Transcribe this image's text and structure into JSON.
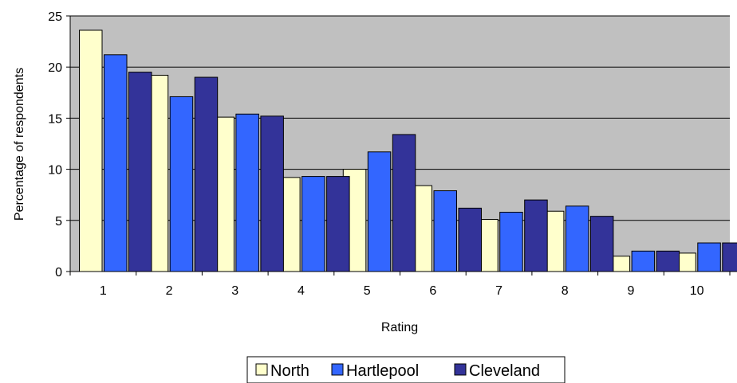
{
  "chart_data": {
    "type": "bar",
    "title": "",
    "xlabel": "Rating",
    "ylabel": "Percentage of respondents",
    "categories": [
      "1",
      "2",
      "3",
      "4",
      "5",
      "6",
      "7",
      "8",
      "9",
      "10"
    ],
    "ylim": [
      0,
      25
    ],
    "yticks": [
      "0",
      "5",
      "10",
      "15",
      "20",
      "25"
    ],
    "grid": true,
    "legend_position": "bottom",
    "series": [
      {
        "name": "North",
        "color": "#ffffcc",
        "values": [
          23.6,
          19.2,
          15.1,
          9.2,
          10.0,
          8.4,
          5.1,
          5.9,
          1.5,
          1.8
        ]
      },
      {
        "name": "Hartlepool",
        "color": "#3366ff",
        "values": [
          21.2,
          17.1,
          15.4,
          9.3,
          11.7,
          7.9,
          5.8,
          6.4,
          2.0,
          2.8
        ]
      },
      {
        "name": "Cleveland",
        "color": "#333399",
        "values": [
          19.5,
          19.0,
          15.2,
          9.3,
          13.4,
          6.2,
          7.0,
          5.4,
          2.0,
          2.8
        ]
      }
    ],
    "plot_background": "#c0c0c0"
  }
}
